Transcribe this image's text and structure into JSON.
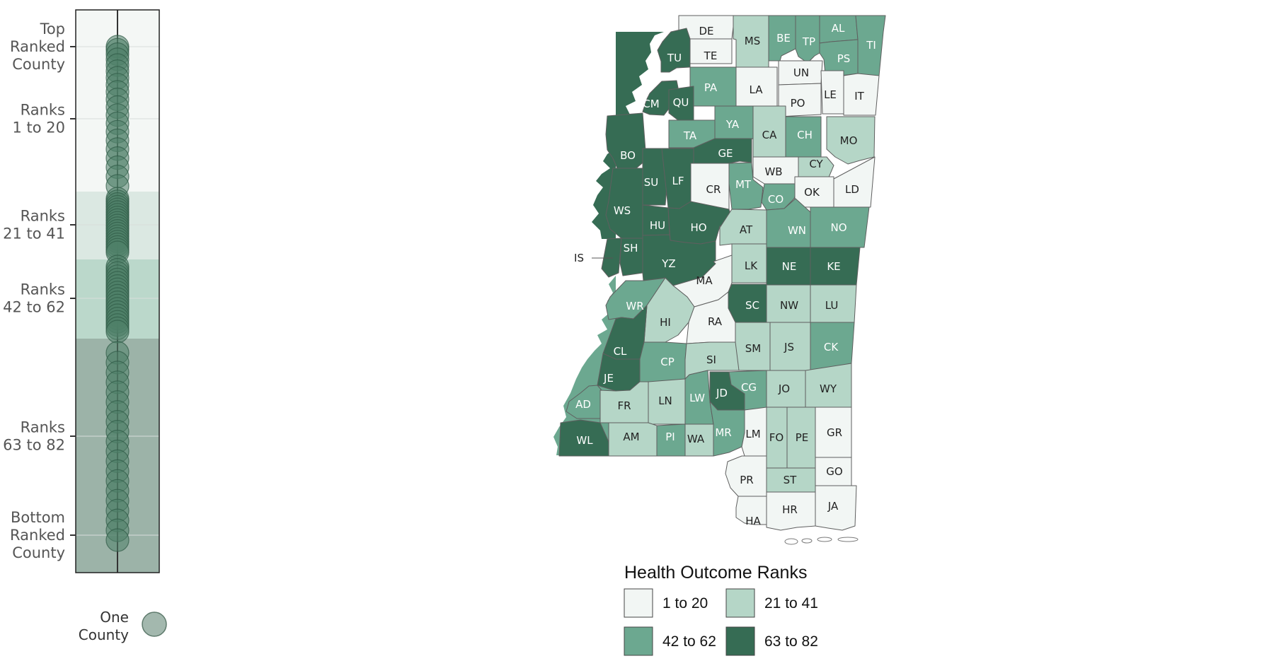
{
  "colors": {
    "bin1": "#f2f6f4",
    "bin2": "#b5d6c7",
    "bin3": "#6ca890",
    "bin4": "#366c54",
    "band1": "#f4f7f5",
    "band2": "#dbe8e2",
    "band3": "#bbd8cb",
    "band4": "#9cb3a8",
    "dot": "#4f8068",
    "text_light": "#ffffff",
    "text_dark": "#222222"
  },
  "strip": {
    "axis_labels": [
      {
        "lines": [
          "Top",
          "Ranked",
          "County"
        ],
        "rank": 1
      },
      {
        "lines": [
          "Ranks",
          "1 to 20"
        ],
        "rank": 10
      },
      {
        "lines": [
          "Ranks",
          "21 to 41"
        ],
        "rank": 31
      },
      {
        "lines": [
          "Ranks",
          "42 to 62"
        ],
        "rank": 52
      },
      {
        "lines": [
          "Ranks",
          "63 to 82"
        ],
        "rank": 72
      },
      {
        "lines": [
          "Bottom",
          "Ranked",
          "County"
        ],
        "rank": 82
      }
    ],
    "one_county_lines": [
      "One",
      "County"
    ]
  },
  "map": {
    "counties": [
      {
        "abbr": "DE",
        "bin": 1
      },
      {
        "abbr": "MS",
        "bin": 2
      },
      {
        "abbr": "BE",
        "bin": 3
      },
      {
        "abbr": "TP",
        "bin": 3
      },
      {
        "abbr": "AL",
        "bin": 3
      },
      {
        "abbr": "TI",
        "bin": 3
      },
      {
        "abbr": "TU",
        "bin": 4
      },
      {
        "abbr": "TE",
        "bin": 1
      },
      {
        "abbr": "PS",
        "bin": 3
      },
      {
        "abbr": "UN",
        "bin": 1
      },
      {
        "abbr": "PA",
        "bin": 3
      },
      {
        "abbr": "LA",
        "bin": 1
      },
      {
        "abbr": "LE",
        "bin": 1
      },
      {
        "abbr": "IT",
        "bin": 1
      },
      {
        "abbr": "PO",
        "bin": 1
      },
      {
        "abbr": "CM",
        "bin": 4
      },
      {
        "abbr": "QU",
        "bin": 4
      },
      {
        "abbr": "YA",
        "bin": 3
      },
      {
        "abbr": "TA",
        "bin": 3
      },
      {
        "abbr": "CA",
        "bin": 2
      },
      {
        "abbr": "CH",
        "bin": 3
      },
      {
        "abbr": "MO",
        "bin": 2
      },
      {
        "abbr": "BO",
        "bin": 4
      },
      {
        "abbr": "GE",
        "bin": 4
      },
      {
        "abbr": "WB",
        "bin": 1
      },
      {
        "abbr": "CY",
        "bin": 2
      },
      {
        "abbr": "SU",
        "bin": 4
      },
      {
        "abbr": "LF",
        "bin": 4
      },
      {
        "abbr": "MT",
        "bin": 3
      },
      {
        "abbr": "CR",
        "bin": 1
      },
      {
        "abbr": "CO",
        "bin": 3
      },
      {
        "abbr": "OK",
        "bin": 1
      },
      {
        "abbr": "LD",
        "bin": 1
      },
      {
        "abbr": "WS",
        "bin": 4
      },
      {
        "abbr": "HU",
        "bin": 4
      },
      {
        "abbr": "HO",
        "bin": 4
      },
      {
        "abbr": "AT",
        "bin": 2
      },
      {
        "abbr": "WN",
        "bin": 3
      },
      {
        "abbr": "NO",
        "bin": 3
      },
      {
        "abbr": "SH",
        "bin": 4
      },
      {
        "abbr": "IS",
        "bin": 4
      },
      {
        "abbr": "YZ",
        "bin": 4
      },
      {
        "abbr": "LK",
        "bin": 2
      },
      {
        "abbr": "NE",
        "bin": 4
      },
      {
        "abbr": "KE",
        "bin": 4
      },
      {
        "abbr": "MA",
        "bin": 1
      },
      {
        "abbr": "WR",
        "bin": 3
      },
      {
        "abbr": "SC",
        "bin": 4
      },
      {
        "abbr": "NW",
        "bin": 2
      },
      {
        "abbr": "LU",
        "bin": 2
      },
      {
        "abbr": "HI",
        "bin": 2
      },
      {
        "abbr": "RA",
        "bin": 1
      },
      {
        "abbr": "CL",
        "bin": 4
      },
      {
        "abbr": "SM",
        "bin": 2
      },
      {
        "abbr": "JS",
        "bin": 2
      },
      {
        "abbr": "CK",
        "bin": 3
      },
      {
        "abbr": "CP",
        "bin": 3
      },
      {
        "abbr": "SI",
        "bin": 2
      },
      {
        "abbr": "JE",
        "bin": 4
      },
      {
        "abbr": "JD",
        "bin": 4
      },
      {
        "abbr": "CG",
        "bin": 3
      },
      {
        "abbr": "JO",
        "bin": 2
      },
      {
        "abbr": "WY",
        "bin": 2
      },
      {
        "abbr": "AD",
        "bin": 3
      },
      {
        "abbr": "FR",
        "bin": 2
      },
      {
        "abbr": "LN",
        "bin": 2
      },
      {
        "abbr": "LW",
        "bin": 3
      },
      {
        "abbr": "WL",
        "bin": 4
      },
      {
        "abbr": "AM",
        "bin": 2
      },
      {
        "abbr": "PI",
        "bin": 3
      },
      {
        "abbr": "WA",
        "bin": 2
      },
      {
        "abbr": "MR",
        "bin": 3
      },
      {
        "abbr": "LM",
        "bin": 1
      },
      {
        "abbr": "FO",
        "bin": 2
      },
      {
        "abbr": "PE",
        "bin": 2
      },
      {
        "abbr": "GR",
        "bin": 1
      },
      {
        "abbr": "GO",
        "bin": 1
      },
      {
        "abbr": "PR",
        "bin": 1
      },
      {
        "abbr": "ST",
        "bin": 2
      },
      {
        "abbr": "HA",
        "bin": 1
      },
      {
        "abbr": "HR",
        "bin": 1
      },
      {
        "abbr": "JA",
        "bin": 1
      }
    ]
  },
  "legend": {
    "title": "Health Outcome Ranks",
    "items": [
      {
        "label": "1 to 20",
        "bin": 1
      },
      {
        "label": "21 to 41",
        "bin": 2
      },
      {
        "label": "42 to 62",
        "bin": 3
      },
      {
        "label": "63 to 82",
        "bin": 4
      }
    ]
  }
}
